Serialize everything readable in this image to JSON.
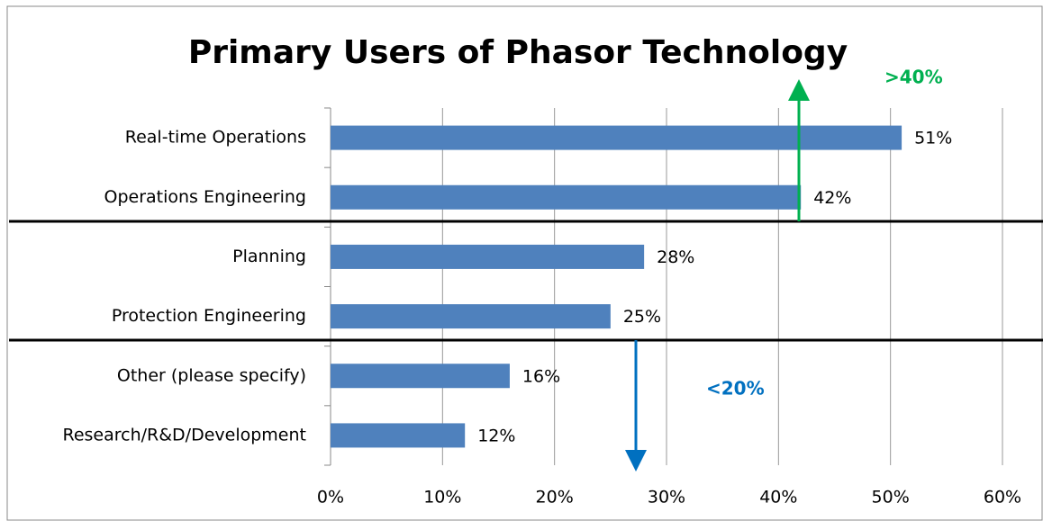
{
  "chart_data": {
    "type": "bar",
    "orientation": "horizontal",
    "title": "Primary Users of Phasor Technology",
    "categories": [
      "Real-time Operations",
      "Operations Engineering",
      "Planning",
      "Protection Engineering",
      "Other (please specify)",
      "Research/R&D/Development"
    ],
    "values": [
      51,
      42,
      28,
      25,
      16,
      12
    ],
    "value_labels": [
      "51%",
      "42%",
      "28%",
      "25%",
      "16%",
      "12%"
    ],
    "color": "#4f81bd",
    "xlim": [
      0,
      60
    ],
    "xticks": [
      {
        "value": 0,
        "label": "0%"
      },
      {
        "value": 10,
        "label": "10%"
      },
      {
        "value": 20,
        "label": "20%"
      },
      {
        "value": 30,
        "label": "30%"
      },
      {
        "value": 40,
        "label": "40%"
      },
      {
        "value": 50,
        "label": "50%"
      },
      {
        "value": 60,
        "label": "60%"
      }
    ],
    "grid": true,
    "annotations": [
      {
        "text": ">40%",
        "color": "#00b050"
      },
      {
        "text": "<20%",
        "color": "#0070c0"
      }
    ]
  }
}
